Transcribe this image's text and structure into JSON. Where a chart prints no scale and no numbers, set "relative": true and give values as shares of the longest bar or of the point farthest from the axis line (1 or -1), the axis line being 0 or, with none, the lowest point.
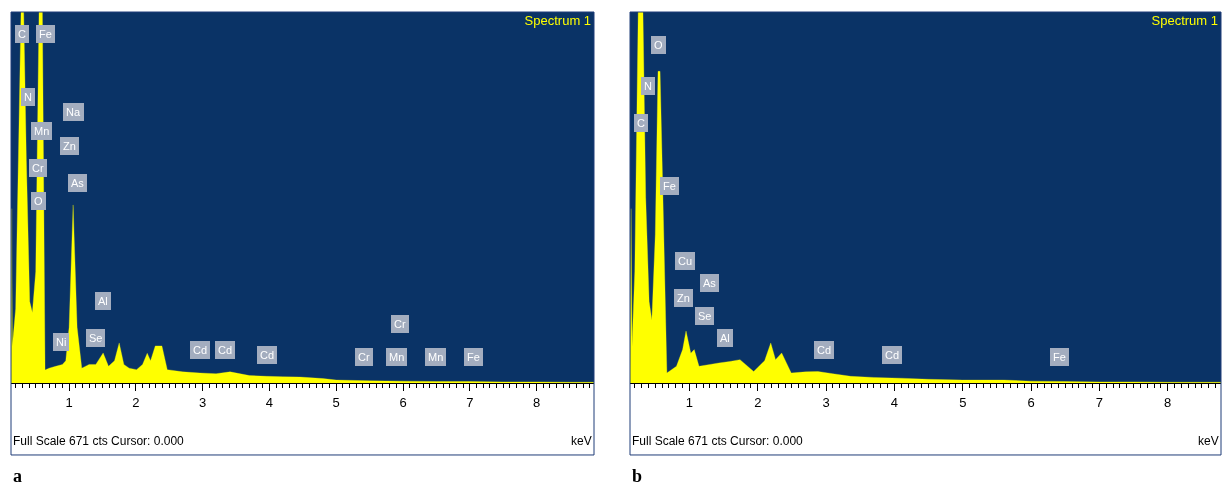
{
  "chart_data": [
    {
      "type": "area",
      "title": "Spectrum 1",
      "xlabel": "keV",
      "relative": true,
      "xlim": [
        0.13,
        8.86
      ],
      "xticks": [
        {
          "value": 0.2,
          "label": null
        },
        {
          "value": 0.3,
          "label": null
        },
        {
          "value": 0.4,
          "label": null
        },
        {
          "value": 0.5,
          "label": null
        },
        {
          "value": 0.6,
          "label": null
        },
        {
          "value": 0.7,
          "label": null
        },
        {
          "value": 0.8,
          "label": null
        },
        {
          "value": 0.9,
          "label": null
        },
        1,
        {
          "value": 1.1,
          "label": null
        },
        {
          "value": 1.2,
          "label": null
        },
        {
          "value": 1.3,
          "label": null
        },
        {
          "value": 1.4,
          "label": null
        },
        {
          "value": 1.5,
          "label": null
        },
        {
          "value": 1.6,
          "label": null
        },
        {
          "value": 1.7,
          "label": null
        },
        {
          "value": 1.8,
          "label": null
        },
        {
          "value": 1.9,
          "label": null
        },
        2,
        {
          "value": 2.1,
          "label": null
        },
        {
          "value": 2.2,
          "label": null
        },
        {
          "value": 2.3,
          "label": null
        },
        {
          "value": 2.4,
          "label": null
        },
        {
          "value": 2.5,
          "label": null
        },
        {
          "value": 2.6,
          "label": null
        },
        {
          "value": 2.7,
          "label": null
        },
        {
          "value": 2.8,
          "label": null
        },
        {
          "value": 2.9,
          "label": null
        },
        3,
        {
          "value": 3.1,
          "label": null
        },
        {
          "value": 3.2,
          "label": null
        },
        {
          "value": 3.3,
          "label": null
        },
        {
          "value": 3.4,
          "label": null
        },
        {
          "value": 3.5,
          "label": null
        },
        {
          "value": 3.6,
          "label": null
        },
        {
          "value": 3.7,
          "label": null
        },
        {
          "value": 3.8,
          "label": null
        },
        {
          "value": 3.9,
          "label": null
        },
        4,
        {
          "value": 4.1,
          "label": null
        },
        {
          "value": 4.2,
          "label": null
        },
        {
          "value": 4.3,
          "label": null
        },
        {
          "value": 4.4,
          "label": null
        },
        {
          "value": 4.5,
          "label": null
        },
        {
          "value": 4.6,
          "label": null
        },
        {
          "value": 4.7,
          "label": null
        },
        {
          "value": 4.8,
          "label": null
        },
        {
          "value": 4.9,
          "label": null
        },
        5,
        {
          "value": 5.1,
          "label": null
        },
        {
          "value": 5.2,
          "label": null
        },
        {
          "value": 5.3,
          "label": null
        },
        {
          "value": 5.4,
          "label": null
        },
        {
          "value": 5.5,
          "label": null
        },
        {
          "value": 5.6,
          "label": null
        },
        {
          "value": 5.7,
          "label": null
        },
        {
          "value": 5.8,
          "label": null
        },
        {
          "value": 5.9,
          "label": null
        },
        6,
        {
          "value": 6.1,
          "label": null
        },
        {
          "value": 6.2,
          "label": null
        },
        {
          "value": 6.3,
          "label": null
        },
        {
          "value": 6.4,
          "label": null
        },
        {
          "value": 6.5,
          "label": null
        },
        {
          "value": 6.6,
          "label": null
        },
        {
          "value": 6.7,
          "label": null
        },
        {
          "value": 6.8,
          "label": null
        },
        {
          "value": 6.9,
          "label": null
        },
        7,
        {
          "value": 7.1,
          "label": null
        },
        {
          "value": 7.2,
          "label": null
        },
        {
          "value": 7.3,
          "label": null
        },
        {
          "value": 7.4,
          "label": null
        },
        {
          "value": 7.5,
          "label": null
        },
        {
          "value": 7.6,
          "label": null
        },
        {
          "value": 7.7,
          "label": null
        },
        {
          "value": 7.8,
          "label": null
        },
        {
          "value": 7.9,
          "label": null
        },
        8,
        {
          "value": 8.1,
          "label": null
        },
        {
          "value": 8.2,
          "label": null
        },
        {
          "value": 8.3,
          "label": null
        },
        {
          "value": 8.4,
          "label": null
        },
        {
          "value": 8.5,
          "label": null
        },
        {
          "value": 8.6,
          "label": null
        },
        {
          "value": 8.7,
          "label": null
        },
        {
          "value": 8.8,
          "label": null
        }
      ],
      "series": [
        {
          "color": "#ffff00",
          "x": [
            0.13,
            0.14,
            0.15,
            0.2,
            0.24,
            0.28,
            0.32,
            0.36,
            0.41,
            0.45,
            0.5,
            0.55,
            0.57,
            0.6,
            0.64,
            0.7,
            0.8,
            0.9,
            0.95,
            1.0,
            1.06,
            1.12,
            1.19,
            1.3,
            1.4,
            1.51,
            1.59,
            1.68,
            1.75,
            1.82,
            1.9,
            2.01,
            2.1,
            2.17,
            2.22,
            2.29,
            2.39,
            2.47,
            2.7,
            2.96,
            3.2,
            3.41,
            3.7,
            3.96,
            4.2,
            4.46,
            4.8,
            5.0,
            5.5,
            6.0,
            6.5,
            7.0,
            7.5,
            8.0,
            8.5,
            8.86
          ],
          "values": [
            0.03,
            0.47,
            0.1,
            0.2,
            0.6,
            1,
            1,
            0.6,
            0.22,
            0.19,
            0.3,
            1,
            1,
            1,
            0.035,
            0.04,
            0.045,
            0.05,
            0.06,
            0.15,
            0.48,
            0.15,
            0.04,
            0.05,
            0.05,
            0.081,
            0.045,
            0.06,
            0.108,
            0.05,
            0.04,
            0.036,
            0.05,
            0.08,
            0.06,
            0.1,
            0.1,
            0.036,
            0.03,
            0.027,
            0.025,
            0.03,
            0.02,
            0.018,
            0.017,
            0.016,
            0.012,
            0.008,
            0.006,
            0.005,
            0.004,
            0.004,
            0.003,
            0.003,
            0.002,
            0.002
          ]
        }
      ],
      "annotations": [
        "Full Scale 671 cts Cursor: 0.000",
        "a",
        {
          "text": "C",
          "x": 0.3,
          "y": 0.94
        },
        {
          "text": "Fe",
          "x": 0.64,
          "y": 0.94
        },
        {
          "text": "N",
          "x": 0.39,
          "y": 0.77
        },
        {
          "text": "Mn",
          "x": 0.58,
          "y": 0.68
        },
        {
          "text": "Cr",
          "x": 0.54,
          "y": 0.58
        },
        {
          "text": "O",
          "x": 0.54,
          "y": 0.49
        },
        {
          "text": "Na",
          "x": 1.06,
          "y": 0.73
        },
        {
          "text": "Zn",
          "x": 1.01,
          "y": 0.64
        },
        {
          "text": "As",
          "x": 1.13,
          "y": 0.54
        },
        {
          "text": "Al",
          "x": 1.51,
          "y": 0.22
        },
        {
          "text": "Se",
          "x": 1.39,
          "y": 0.12
        },
        {
          "text": "Ni",
          "x": 0.88,
          "y": 0.11
        },
        {
          "text": "Cd",
          "x": 2.96,
          "y": 0.09
        },
        {
          "text": "Cd",
          "x": 3.33,
          "y": 0.09
        },
        {
          "text": "Cd",
          "x": 3.96,
          "y": 0.075
        },
        {
          "text": "Cr",
          "x": 5.42,
          "y": 0.07
        },
        {
          "text": "Cr",
          "x": 5.96,
          "y": 0.16
        },
        {
          "text": "Mn",
          "x": 5.9,
          "y": 0.07
        },
        {
          "text": "Mn",
          "x": 6.48,
          "y": 0.07
        },
        {
          "text": "Fe",
          "x": 7.05,
          "y": 0.07
        }
      ]
    },
    {
      "type": "area",
      "title": "Spectrum 1",
      "xlabel": "keV",
      "relative": true,
      "xlim": [
        0.13,
        8.78
      ],
      "xticks": [
        {
          "value": 0.2,
          "label": null
        },
        {
          "value": 0.3,
          "label": null
        },
        {
          "value": 0.4,
          "label": null
        },
        {
          "value": 0.5,
          "label": null
        },
        {
          "value": 0.6,
          "label": null
        },
        {
          "value": 0.7,
          "label": null
        },
        {
          "value": 0.8,
          "label": null
        },
        {
          "value": 0.9,
          "label": null
        },
        1,
        {
          "value": 1.1,
          "label": null
        },
        {
          "value": 1.2,
          "label": null
        },
        {
          "value": 1.3,
          "label": null
        },
        {
          "value": 1.4,
          "label": null
        },
        {
          "value": 1.5,
          "label": null
        },
        {
          "value": 1.6,
          "label": null
        },
        {
          "value": 1.7,
          "label": null
        },
        {
          "value": 1.8,
          "label": null
        },
        {
          "value": 1.9,
          "label": null
        },
        2,
        {
          "value": 2.1,
          "label": null
        },
        {
          "value": 2.2,
          "label": null
        },
        {
          "value": 2.3,
          "label": null
        },
        {
          "value": 2.4,
          "label": null
        },
        {
          "value": 2.5,
          "label": null
        },
        {
          "value": 2.6,
          "label": null
        },
        {
          "value": 2.7,
          "label": null
        },
        {
          "value": 2.8,
          "label": null
        },
        {
          "value": 2.9,
          "label": null
        },
        3,
        {
          "value": 3.1,
          "label": null
        },
        {
          "value": 3.2,
          "label": null
        },
        {
          "value": 3.3,
          "label": null
        },
        {
          "value": 3.4,
          "label": null
        },
        {
          "value": 3.5,
          "label": null
        },
        {
          "value": 3.6,
          "label": null
        },
        {
          "value": 3.7,
          "label": null
        },
        {
          "value": 3.8,
          "label": null
        },
        {
          "value": 3.9,
          "label": null
        },
        4,
        {
          "value": 4.1,
          "label": null
        },
        {
          "value": 4.2,
          "label": null
        },
        {
          "value": 4.3,
          "label": null
        },
        {
          "value": 4.4,
          "label": null
        },
        {
          "value": 4.5,
          "label": null
        },
        {
          "value": 4.6,
          "label": null
        },
        {
          "value": 4.7,
          "label": null
        },
        {
          "value": 4.8,
          "label": null
        },
        {
          "value": 4.9,
          "label": null
        },
        5,
        {
          "value": 5.1,
          "label": null
        },
        {
          "value": 5.2,
          "label": null
        },
        {
          "value": 5.3,
          "label": null
        },
        {
          "value": 5.4,
          "label": null
        },
        {
          "value": 5.5,
          "label": null
        },
        {
          "value": 5.6,
          "label": null
        },
        {
          "value": 5.7,
          "label": null
        },
        {
          "value": 5.8,
          "label": null
        },
        {
          "value": 5.9,
          "label": null
        },
        6,
        {
          "value": 6.1,
          "label": null
        },
        {
          "value": 6.2,
          "label": null
        },
        {
          "value": 6.3,
          "label": null
        },
        {
          "value": 6.4,
          "label": null
        },
        {
          "value": 6.5,
          "label": null
        },
        {
          "value": 6.6,
          "label": null
        },
        {
          "value": 6.7,
          "label": null
        },
        {
          "value": 6.8,
          "label": null
        },
        {
          "value": 6.9,
          "label": null
        },
        7,
        {
          "value": 7.1,
          "label": null
        },
        {
          "value": 7.2,
          "label": null
        },
        {
          "value": 7.3,
          "label": null
        },
        {
          "value": 7.4,
          "label": null
        },
        {
          "value": 7.5,
          "label": null
        },
        {
          "value": 7.6,
          "label": null
        },
        {
          "value": 7.7,
          "label": null
        },
        {
          "value": 7.8,
          "label": null
        },
        {
          "value": 7.9,
          "label": null
        },
        8,
        {
          "value": 8.1,
          "label": null
        },
        {
          "value": 8.2,
          "label": null
        },
        {
          "value": 8.3,
          "label": null
        },
        {
          "value": 8.4,
          "label": null
        },
        {
          "value": 8.5,
          "label": null
        },
        {
          "value": 8.6,
          "label": null
        },
        {
          "value": 8.7,
          "label": null
        }
      ],
      "series": [
        {
          "color": "#ffff00",
          "x": [
            0.13,
            0.145,
            0.16,
            0.2,
            0.25,
            0.28,
            0.32,
            0.36,
            0.41,
            0.45,
            0.5,
            0.54,
            0.57,
            0.6,
            0.67,
            0.81,
            0.9,
            0.95,
            1.02,
            1.07,
            1.14,
            1.3,
            1.43,
            1.59,
            1.74,
            1.94,
            2.1,
            2.19,
            2.26,
            2.35,
            2.49,
            2.7,
            2.88,
            3.1,
            3.36,
            3.7,
            4.09,
            4.5,
            5.0,
            5.6,
            6.0,
            6.5,
            7.0,
            7.5,
            8.0,
            8.5,
            8.78
          ],
          "values": [
            0.03,
            0.47,
            0.1,
            0.3,
            1,
            1,
            1,
            0.5,
            0.22,
            0.17,
            0.4,
            0.84,
            0.84,
            0.6,
            0.027,
            0.045,
            0.09,
            0.14,
            0.08,
            0.09,
            0.045,
            0.05,
            0.054,
            0.058,
            0.063,
            0.031,
            0.06,
            0.108,
            0.063,
            0.081,
            0.027,
            0.03,
            0.031,
            0.025,
            0.018,
            0.015,
            0.013,
            0.01,
            0.008,
            0.008,
            0.005,
            0.004,
            0.003,
            0.003,
            0.002,
            0.002,
            0.002
          ]
        }
      ],
      "annotations": [
        "Full Scale 671 cts Cursor: 0.000",
        "b",
        {
          "text": "O",
          "x": 0.54,
          "y": 0.91
        },
        {
          "text": "N",
          "x": 0.39,
          "y": 0.8
        },
        {
          "text": "C",
          "x": 0.29,
          "y": 0.7
        },
        {
          "text": "Fe",
          "x": 0.71,
          "y": 0.53
        },
        {
          "text": "Cu",
          "x": 0.94,
          "y": 0.33
        },
        {
          "text": "As",
          "x": 1.3,
          "y": 0.27
        },
        {
          "text": "Zn",
          "x": 0.91,
          "y": 0.23
        },
        {
          "text": "Se",
          "x": 1.22,
          "y": 0.18
        },
        {
          "text": "Al",
          "x": 1.52,
          "y": 0.12
        },
        {
          "text": "Cd",
          "x": 2.97,
          "y": 0.09
        },
        {
          "text": "Cd",
          "x": 3.97,
          "y": 0.075
        },
        {
          "text": "Fe",
          "x": 6.41,
          "y": 0.07
        }
      ]
    }
  ]
}
